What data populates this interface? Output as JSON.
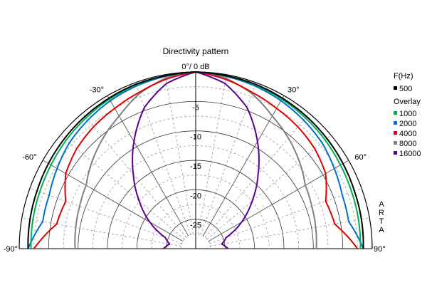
{
  "chart_data": {
    "type": "polar",
    "title": "Directivity pattern",
    "angle_range": [
      -90,
      90
    ],
    "angle_ticks": [
      {
        "angle": -90,
        "label": "-90°"
      },
      {
        "angle": -60,
        "label": "-60°"
      },
      {
        "angle": -30,
        "label": "-30°"
      },
      {
        "angle": 0,
        "label": "0°/ 0 dB"
      },
      {
        "angle": 30,
        "label": "30°"
      },
      {
        "angle": 60,
        "label": "60°"
      },
      {
        "angle": 90,
        "label": "90°"
      }
    ],
    "radial_range_db": [
      -30,
      0
    ],
    "radial_ticks": [
      {
        "value": -5,
        "label": "-5"
      },
      {
        "value": -10,
        "label": "-10"
      },
      {
        "value": -15,
        "label": "-15"
      },
      {
        "value": -20,
        "label": "-20"
      },
      {
        "value": -25,
        "label": "-25"
      }
    ],
    "grid": true,
    "legend_placement": "right",
    "legend": {
      "title": "F(Hz)",
      "overlay_title": "Overlay"
    },
    "series": [
      {
        "name": "500",
        "color": "#000000",
        "points": [
          [
            0,
            0
          ],
          [
            10,
            -0.2
          ],
          [
            20,
            -0.3
          ],
          [
            30,
            -0.5
          ],
          [
            40,
            -0.7
          ],
          [
            50,
            -0.9
          ],
          [
            60,
            -1.1
          ],
          [
            70,
            -1.3
          ],
          [
            80,
            -1.4
          ],
          [
            90,
            -1.5
          ]
        ]
      },
      {
        "name": "1000",
        "color": "#00b050",
        "points": [
          [
            0,
            0
          ],
          [
            10,
            -0.2
          ],
          [
            20,
            -0.4
          ],
          [
            30,
            -0.7
          ],
          [
            40,
            -1.0
          ],
          [
            50,
            -1.3
          ],
          [
            60,
            -1.6
          ],
          [
            70,
            -1.8
          ],
          [
            80,
            -1.9
          ],
          [
            90,
            -2.0
          ]
        ]
      },
      {
        "name": "2000",
        "color": "#0070d0",
        "points": [
          [
            0,
            0
          ],
          [
            10,
            -0.3
          ],
          [
            20,
            -0.6
          ],
          [
            30,
            -1.0
          ],
          [
            40,
            -1.5
          ],
          [
            50,
            -2.0
          ],
          [
            60,
            -2.8
          ],
          [
            70,
            -3.5
          ],
          [
            80,
            -3.6
          ],
          [
            90,
            -1.5
          ]
        ]
      },
      {
        "name": "4000",
        "color": "#e00000",
        "points": [
          [
            0,
            0
          ],
          [
            10,
            -0.8
          ],
          [
            20,
            -1.8
          ],
          [
            30,
            -2.5
          ],
          [
            40,
            -3.0
          ],
          [
            50,
            -3.6
          ],
          [
            60,
            -4.5
          ],
          [
            70,
            -6.5
          ],
          [
            80,
            -6.0
          ],
          [
            90,
            -2.5
          ]
        ]
      },
      {
        "name": "8000",
        "color": "#808080",
        "points": [
          [
            0,
            0
          ],
          [
            10,
            -0.6
          ],
          [
            20,
            -2.0
          ],
          [
            30,
            -4.0
          ],
          [
            40,
            -5.5
          ],
          [
            50,
            -7.0
          ],
          [
            60,
            -8.5
          ],
          [
            70,
            -9.0
          ],
          [
            80,
            -9.3
          ],
          [
            90,
            -9.5
          ]
        ]
      },
      {
        "name": "16000",
        "color": "#5a0090",
        "points": [
          [
            0,
            0
          ],
          [
            10,
            -1.5
          ],
          [
            20,
            -4.5
          ],
          [
            30,
            -9.0
          ],
          [
            40,
            -13.5
          ],
          [
            50,
            -17.5
          ],
          [
            60,
            -21.0
          ],
          [
            70,
            -24.5
          ],
          [
            80,
            -25.5
          ],
          [
            90,
            -24.5
          ]
        ]
      }
    ],
    "watermark": [
      "A",
      "R",
      "T",
      "A"
    ]
  }
}
